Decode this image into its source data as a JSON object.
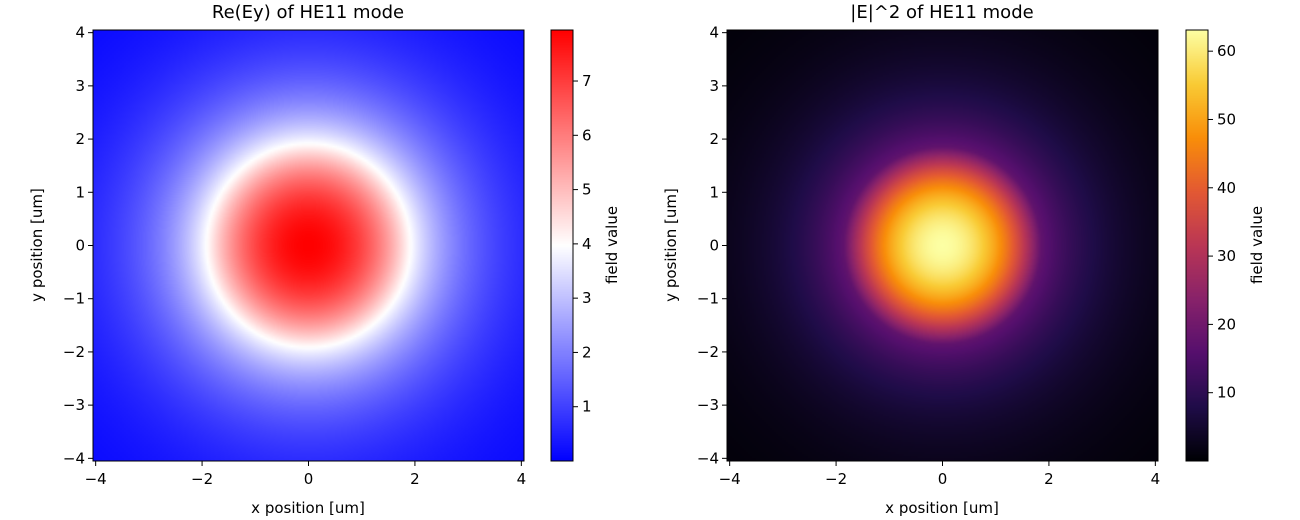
{
  "chart_data": [
    {
      "type": "heatmap",
      "title": "Re(Ey) of HE11 mode",
      "xlabel": "x position [um]",
      "ylabel": "y position [um]",
      "xlim": [
        -4.05,
        4.05
      ],
      "ylim": [
        -4.05,
        4.05
      ],
      "xticks": [
        -4,
        -2,
        0,
        2,
        4
      ],
      "yticks": [
        -4,
        -3,
        -2,
        -1,
        0,
        1,
        2,
        3,
        4
      ],
      "x_tick_labels": [
        "−4",
        "−2",
        "0",
        "2",
        "4"
      ],
      "y_tick_labels": [
        "−4",
        "−3",
        "−2",
        "−1",
        "0",
        "1",
        "2",
        "3",
        "4"
      ],
      "colormap": "bwr",
      "colormap_colors": [
        "#0000ff",
        "#ffffff",
        "#ff0000"
      ],
      "colorbar": {
        "label": "field value",
        "range": [
          0,
          7.94
        ],
        "ticks": [
          1,
          2,
          3,
          4,
          5,
          6,
          7
        ],
        "tick_labels": [
          "1",
          "2",
          "3",
          "4",
          "5",
          "6",
          "7"
        ]
      },
      "field_model": {
        "peak_value": 7.94,
        "core_radius_um": 1.85,
        "value_at_core_edge": 4.2,
        "cladding_decay_per_um": 0.82
      }
    },
    {
      "type": "heatmap",
      "title": "|E|^2 of HE11 mode",
      "xlabel": "x position [um]",
      "ylabel": "y position [um]",
      "xlim": [
        -4.05,
        4.05
      ],
      "ylim": [
        -4.05,
        4.05
      ],
      "xticks": [
        -4,
        -2,
        0,
        2,
        4
      ],
      "yticks": [
        -4,
        -3,
        -2,
        -1,
        0,
        1,
        2,
        3,
        4
      ],
      "x_tick_labels": [
        "−4",
        "−2",
        "0",
        "2",
        "4"
      ],
      "y_tick_labels": [
        "−4",
        "−3",
        "−2",
        "−1",
        "0",
        "1",
        "2",
        "3",
        "4"
      ],
      "colormap": "inferno",
      "colormap_colors": [
        "#000004",
        "#1f0c48",
        "#550f6d",
        "#88226a",
        "#ba3655",
        "#e35933",
        "#f98e09",
        "#f9cb35",
        "#fcffa4"
      ],
      "colorbar": {
        "label": "field value",
        "range": [
          0,
          63.1
        ],
        "ticks": [
          10,
          20,
          30,
          40,
          50,
          60
        ],
        "tick_labels": [
          "10",
          "20",
          "30",
          "40",
          "50",
          "60"
        ]
      },
      "field_model": {
        "peak_value": 63.1,
        "core_radius_um": 1.85,
        "value_at_core_edge": 17.6,
        "cladding_decay_per_um": 0.82
      }
    }
  ]
}
